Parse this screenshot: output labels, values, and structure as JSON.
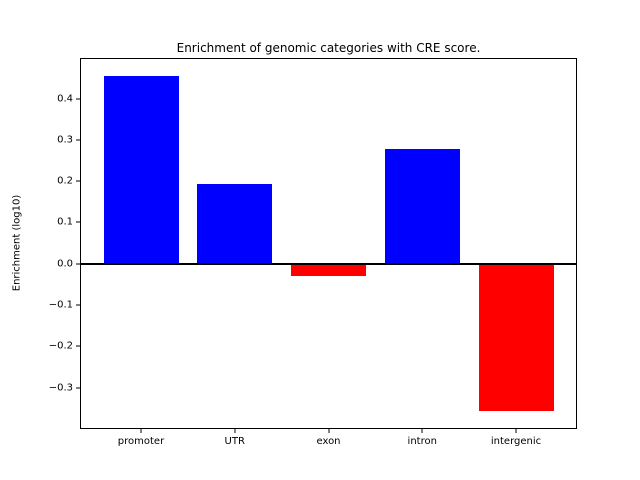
{
  "figure": {
    "title": "Enrichment of genomic categories with CRE score."
  },
  "chart_data": {
    "type": "bar",
    "title": "Enrichment of genomic categories with CRE score.",
    "xlabel": "",
    "ylabel": "Enrichment (log10)",
    "categories": [
      "promoter",
      "UTR",
      "exon",
      "intron",
      "intergenic"
    ],
    "values": [
      0.455,
      0.193,
      -0.03,
      0.278,
      -0.357
    ],
    "bar_colors": [
      "#0000ff",
      "#0000ff",
      "#ff0000",
      "#0000ff",
      "#ff0000"
    ],
    "positive_color": "#0000ff",
    "negative_color": "#ff0000",
    "bar_width_fraction": 0.8,
    "xlim": [
      -0.64,
      4.64
    ],
    "ylim": [
      -0.398,
      0.496
    ],
    "yticks": {
      "values": [
        0.4,
        0.3,
        0.2,
        0.1,
        0.0,
        -0.1,
        -0.2,
        -0.3
      ],
      "labels": [
        "0.4",
        "0.3",
        "0.2",
        "0.1",
        "0.0",
        "−0.1",
        "−0.2",
        "−0.3"
      ]
    },
    "zero_line": {
      "show": true,
      "color": "#000000",
      "thickness_px": 2
    },
    "grid": false,
    "legend": "none"
  }
}
